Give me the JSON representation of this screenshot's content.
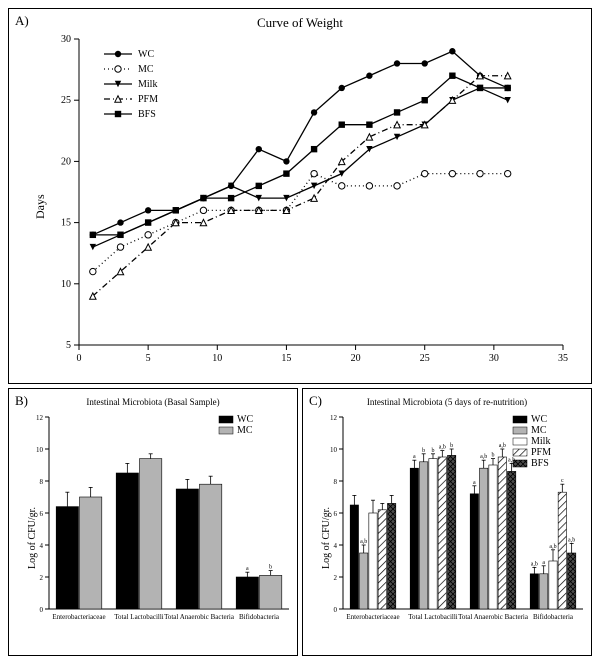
{
  "panelA": {
    "label": "A)",
    "title": "Curve of Weight",
    "title_fontsize": 14,
    "ylabel": "Days",
    "xlim": [
      0,
      35
    ],
    "ylim": [
      5,
      30
    ],
    "xticks": [
      0,
      5,
      10,
      15,
      20,
      25,
      30,
      35
    ],
    "yticks": [
      5,
      10,
      15,
      20,
      25,
      30
    ],
    "background": "#ffffff",
    "axis_color": "#000000",
    "tick_fontsize": 10,
    "legend": {
      "position": "top-left-inside",
      "items": [
        "WC",
        "MC",
        "Milk",
        "PFM",
        "BFS"
      ]
    },
    "series": [
      {
        "name": "WC",
        "marker": "circle-filled",
        "linestyle": "solid",
        "color": "#000000",
        "x": [
          1,
          3,
          5,
          7,
          9,
          11,
          13,
          15,
          17,
          19,
          21,
          23,
          25,
          27,
          29,
          31
        ],
        "y": [
          14,
          15,
          16,
          16,
          17,
          18,
          21,
          20,
          24,
          26,
          27,
          28,
          28,
          29,
          27,
          26
        ]
      },
      {
        "name": "MC",
        "marker": "circle-open",
        "linestyle": "dot",
        "color": "#000000",
        "x": [
          1,
          3,
          5,
          7,
          9,
          11,
          13,
          15,
          17,
          19,
          21,
          23,
          25,
          27,
          29,
          31
        ],
        "y": [
          11,
          13,
          14,
          15,
          16,
          16,
          16,
          16,
          19,
          18,
          18,
          18,
          19,
          19,
          19,
          19
        ]
      },
      {
        "name": "Milk",
        "marker": "triangle-down-filled",
        "linestyle": "solid",
        "color": "#000000",
        "x": [
          1,
          3,
          5,
          7,
          9,
          11,
          13,
          15,
          17,
          19,
          21,
          23,
          25,
          27,
          29,
          31
        ],
        "y": [
          13,
          14,
          15,
          16,
          17,
          18,
          17,
          17,
          18,
          19,
          21,
          22,
          23,
          25,
          26,
          25
        ]
      },
      {
        "name": "PFM",
        "marker": "triangle-up-open",
        "linestyle": "dashdot",
        "color": "#000000",
        "x": [
          1,
          3,
          5,
          7,
          9,
          11,
          13,
          15,
          17,
          19,
          21,
          23,
          25,
          27,
          29,
          31
        ],
        "y": [
          9,
          11,
          13,
          15,
          15,
          16,
          16,
          16,
          17,
          20,
          22,
          23,
          23,
          25,
          27,
          27
        ]
      },
      {
        "name": "BFS",
        "marker": "square-filled",
        "linestyle": "solid",
        "color": "#000000",
        "x": [
          1,
          3,
          5,
          7,
          9,
          11,
          13,
          15,
          17,
          19,
          21,
          23,
          25,
          27,
          29,
          31
        ],
        "y": [
          14,
          14,
          15,
          16,
          17,
          17,
          18,
          19,
          21,
          23,
          23,
          24,
          25,
          27,
          26,
          26
        ]
      }
    ]
  },
  "panelB": {
    "label": "B)",
    "title": "Intestinal Microbiota (Basal Sample)",
    "title_fontsize": 9,
    "ylabel": "Log of CFU/gr.",
    "xlim_categories": [
      "Enterobacteriaceae",
      "Total Lactobacilli",
      "Total Anaerobic Bacteria",
      "Bifidobacteria"
    ],
    "ylim": [
      0,
      12
    ],
    "yticks": [
      0,
      2,
      4,
      6,
      8,
      10,
      12
    ],
    "background": "#ffffff",
    "bar_groups": [
      "WC",
      "MC"
    ],
    "bar_colors": [
      "#000000",
      "#b3b3b3"
    ],
    "values": {
      "WC": [
        6.4,
        8.5,
        7.5,
        2.0
      ],
      "MC": [
        7.0,
        9.4,
        7.8,
        2.1
      ]
    },
    "errors": {
      "WC": [
        0.9,
        0.6,
        0.6,
        0.3
      ],
      "MC": [
        0.6,
        0.3,
        0.5,
        0.3
      ]
    },
    "annotations": {
      "Bifidobacteria": {
        "WC": "a",
        "MC": "b"
      }
    }
  },
  "panelC": {
    "label": "C)",
    "title": "Intestinal Microbiota (5 days of re-nutrition)",
    "title_fontsize": 9,
    "ylabel": "Log of CFU/gr.",
    "xlim_categories": [
      "Enterobacteriaceae",
      "Total Lactobacilli",
      "Total Anaerobic Bacteria",
      "Bifidobacteria"
    ],
    "ylim": [
      0,
      12
    ],
    "yticks": [
      0,
      2,
      4,
      6,
      8,
      10,
      12
    ],
    "background": "#ffffff",
    "bar_groups": [
      "WC",
      "MC",
      "Milk",
      "PFM",
      "BFS"
    ],
    "bar_colors": [
      "#000000",
      "#b3b3b3",
      "#ffffff",
      "#ffffff",
      "#4d4d4d"
    ],
    "bar_patterns": [
      "solid",
      "solid",
      "solid",
      "hatch-diag",
      "hatch-cross"
    ],
    "values": {
      "WC": [
        6.5,
        8.8,
        7.2,
        2.2
      ],
      "MC": [
        3.5,
        9.2,
        8.8,
        2.2
      ],
      "Milk": [
        6.0,
        9.4,
        9.0,
        3.0
      ],
      "PFM": [
        6.2,
        9.5,
        9.5,
        7.3
      ],
      "BFS": [
        6.6,
        9.6,
        8.6,
        3.5
      ]
    },
    "errors": {
      "WC": [
        0.6,
        0.5,
        0.5,
        0.4
      ],
      "MC": [
        0.5,
        0.5,
        0.5,
        0.5
      ],
      "Milk": [
        0.8,
        0.3,
        0.4,
        0.7
      ],
      "PFM": [
        0.4,
        0.4,
        0.5,
        0.5
      ],
      "BFS": [
        0.5,
        0.4,
        0.5,
        0.6
      ]
    },
    "annotations": {
      "Enterobacteriaceae": {
        "WC": "",
        "MC": "a,b",
        "Milk": "",
        "PFM": "",
        "BFS": ""
      },
      "Total Lactobacilli": {
        "WC": "a",
        "MC": "b",
        "Milk": "b",
        "PFM": "a,b",
        "BFS": "b"
      },
      "Total Anaerobic Bacteria": {
        "WC": "a",
        "MC": "a,b",
        "Milk": "b",
        "PFM": "a,b",
        "BFS": "a,b"
      },
      "Bifidobacteria": {
        "WC": "a,b",
        "MC": "a",
        "Milk": "a,b",
        "PFM": "c",
        "BFS": "a,b"
      }
    }
  }
}
